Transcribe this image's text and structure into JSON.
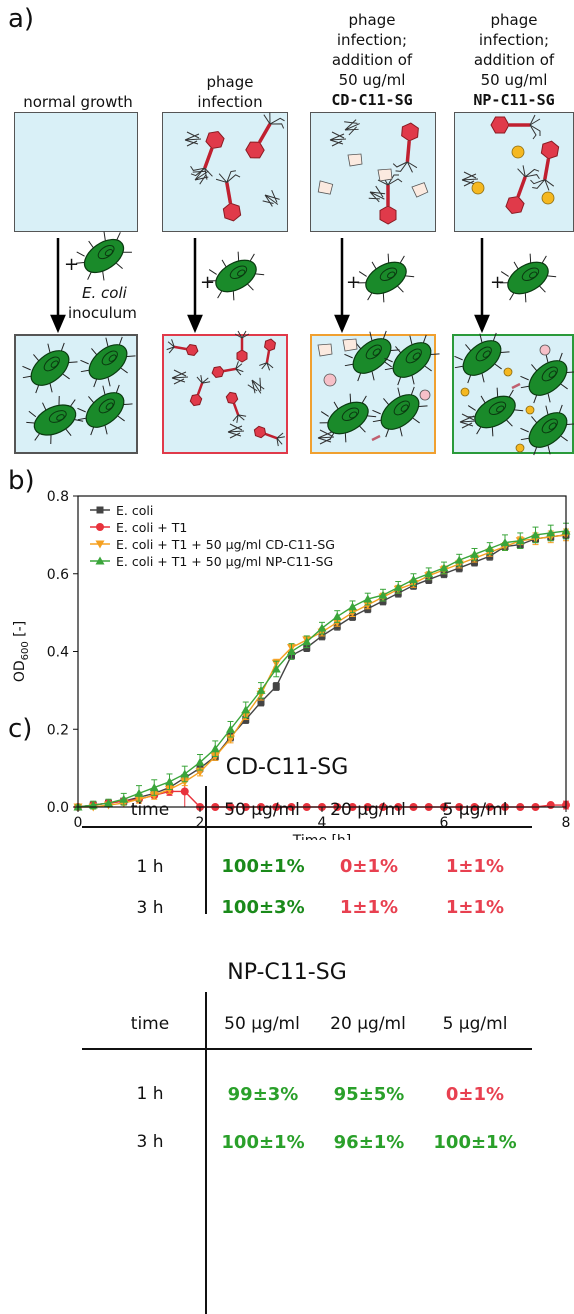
{
  "panel_a": {
    "label": "a)",
    "headers": [
      {
        "lines": [
          "normal growth"
        ],
        "bold": ""
      },
      {
        "lines": [
          "phage",
          "infection"
        ],
        "bold": ""
      },
      {
        "lines": [
          "phage",
          "infection;",
          "addition of",
          "50 ug/ml"
        ],
        "bold": "CD-C11-SG"
      },
      {
        "lines": [
          "phage",
          "infection;",
          "addition of",
          "50 ug/ml"
        ],
        "bold": "NP-C11-SG"
      }
    ],
    "plus": "+",
    "ecoli_label": "E. coli",
    "inoculum_label": "inoculum",
    "colors": {
      "box_bg": "#d9f0f7",
      "normal_border": "#555555",
      "phage_border": "#e03a4a",
      "cd_border": "#f0a030",
      "np_border": "#2a9a3a",
      "phage_red": "#e03a4a",
      "ecoli_green": "#1a8a2a",
      "np_dot": "#f5b820"
    }
  },
  "panel_b": {
    "label": "b)"
  },
  "chart_data": {
    "type": "line",
    "xlabel": "Time [h]",
    "ylabel_main": "OD",
    "ylabel_sub": "600",
    "ylabel_unit": " [-]",
    "xlim": [
      0,
      8
    ],
    "ylim": [
      0,
      0.8
    ],
    "xticks": [
      0,
      2,
      4,
      6,
      8
    ],
    "yticks": [
      0.0,
      0.2,
      0.4,
      0.6,
      0.8
    ],
    "xtick_labels": [
      "0",
      "2",
      "4",
      "6",
      "8"
    ],
    "ytick_labels": [
      "0.0",
      "0.2",
      "0.4",
      "0.6",
      "0.8"
    ],
    "legend_position": "top-left",
    "series": [
      {
        "name": "E. coli",
        "color": "#444444",
        "marker": "square",
        "x": [
          0,
          0.25,
          0.5,
          0.75,
          1,
          1.25,
          1.5,
          1.75,
          2,
          2.25,
          2.5,
          2.75,
          3,
          3.25,
          3.5,
          3.75,
          4,
          4.25,
          4.5,
          4.75,
          5,
          5.25,
          5.5,
          5.75,
          6,
          6.25,
          6.5,
          6.75,
          7,
          7.25,
          7.5,
          7.75,
          8
        ],
        "y": [
          0.0,
          0.005,
          0.01,
          0.015,
          0.025,
          0.035,
          0.05,
          0.075,
          0.1,
          0.13,
          0.18,
          0.225,
          0.27,
          0.31,
          0.39,
          0.41,
          0.44,
          0.465,
          0.49,
          0.51,
          0.53,
          0.55,
          0.57,
          0.585,
          0.6,
          0.615,
          0.63,
          0.645,
          0.67,
          0.675,
          0.69,
          0.695,
          0.7
        ],
        "err": [
          0.005,
          0.005,
          0.005,
          0.005,
          0.005,
          0.005,
          0.005,
          0.008,
          0.01,
          0.01,
          0.01,
          0.01,
          0.01,
          0.01,
          0.01,
          0.01,
          0.01,
          0.01,
          0.01,
          0.01,
          0.01,
          0.01,
          0.01,
          0.01,
          0.01,
          0.01,
          0.01,
          0.01,
          0.01,
          0.01,
          0.01,
          0.01,
          0.01
        ]
      },
      {
        "name": "E. coli + T1",
        "color": "#e8323c",
        "marker": "circle",
        "x": [
          0,
          0.25,
          0.5,
          0.75,
          1,
          1.25,
          1.5,
          1.75,
          2,
          2.25,
          2.5,
          2.75,
          3,
          3.25,
          3.5,
          3.75,
          4,
          4.25,
          4.5,
          4.75,
          5,
          5.25,
          5.5,
          5.75,
          6,
          6.25,
          6.5,
          6.75,
          7,
          7.25,
          7.5,
          7.75,
          8
        ],
        "y": [
          0.0,
          0.005,
          0.01,
          0.015,
          0.02,
          0.03,
          0.04,
          0.04,
          0.0,
          0.0,
          0.0,
          0.0,
          0.0,
          0.0,
          0.0,
          0.0,
          0.0,
          0.0,
          0.0,
          0.0,
          0.0,
          0.0,
          0.0,
          0.0,
          0.0,
          0.0,
          0.0,
          0.0,
          0.0,
          0.0,
          0.0,
          0.005,
          0.005
        ],
        "err": [
          0.005,
          0.005,
          0.005,
          0.005,
          0.005,
          0.005,
          0.01,
          0.04,
          0.005,
          0.003,
          0.003,
          0.003,
          0.003,
          0.003,
          0.003,
          0.003,
          0.003,
          0.003,
          0.003,
          0.003,
          0.003,
          0.003,
          0.003,
          0.003,
          0.003,
          0.003,
          0.003,
          0.003,
          0.003,
          0.003,
          0.003,
          0.005,
          0.01
        ]
      },
      {
        "name": "E. coli + T1 + 50 µg/ml CD-C11-SG",
        "color": "#f5a020",
        "marker": "triangle-down",
        "x": [
          0,
          0.25,
          0.5,
          0.75,
          1,
          1.25,
          1.5,
          1.75,
          2,
          2.25,
          2.5,
          2.75,
          3,
          3.25,
          3.5,
          3.75,
          4,
          4.25,
          4.5,
          4.75,
          5,
          5.25,
          5.5,
          5.75,
          6,
          6.25,
          6.5,
          6.75,
          7,
          7.25,
          7.5,
          7.75,
          8
        ],
        "y": [
          0.0,
          0.0,
          0.005,
          0.01,
          0.02,
          0.03,
          0.045,
          0.065,
          0.09,
          0.13,
          0.175,
          0.235,
          0.29,
          0.37,
          0.41,
          0.43,
          0.45,
          0.475,
          0.5,
          0.52,
          0.54,
          0.56,
          0.575,
          0.595,
          0.61,
          0.625,
          0.64,
          0.655,
          0.67,
          0.685,
          0.69,
          0.695,
          0.7
        ],
        "err": [
          0.005,
          0.005,
          0.005,
          0.005,
          0.01,
          0.01,
          0.01,
          0.01,
          0.01,
          0.01,
          0.01,
          0.01,
          0.015,
          0.01,
          0.01,
          0.01,
          0.01,
          0.01,
          0.01,
          0.01,
          0.01,
          0.01,
          0.01,
          0.01,
          0.01,
          0.01,
          0.01,
          0.01,
          0.01,
          0.01,
          0.015,
          0.015,
          0.015
        ]
      },
      {
        "name": "E. coli + T1 + 50 µg/ml NP-C11-SG",
        "color": "#3aa53a",
        "marker": "triangle-up",
        "x": [
          0,
          0.25,
          0.5,
          0.75,
          1,
          1.25,
          1.5,
          1.75,
          2,
          2.25,
          2.5,
          2.75,
          3,
          3.25,
          3.5,
          3.75,
          4,
          4.25,
          4.5,
          4.75,
          5,
          5.25,
          5.5,
          5.75,
          6,
          6.25,
          6.5,
          6.75,
          7,
          7.25,
          7.5,
          7.75,
          8
        ],
        "y": [
          0.0,
          0.005,
          0.01,
          0.02,
          0.035,
          0.05,
          0.065,
          0.085,
          0.115,
          0.15,
          0.2,
          0.25,
          0.3,
          0.355,
          0.4,
          0.425,
          0.46,
          0.49,
          0.515,
          0.535,
          0.545,
          0.565,
          0.585,
          0.6,
          0.615,
          0.635,
          0.65,
          0.665,
          0.68,
          0.685,
          0.7,
          0.705,
          0.71
        ],
        "err": [
          0.005,
          0.01,
          0.01,
          0.015,
          0.02,
          0.02,
          0.02,
          0.02,
          0.02,
          0.02,
          0.02,
          0.02,
          0.02,
          0.02,
          0.02,
          0.015,
          0.015,
          0.015,
          0.015,
          0.015,
          0.015,
          0.015,
          0.015,
          0.015,
          0.015,
          0.015,
          0.015,
          0.015,
          0.02,
          0.02,
          0.02,
          0.02,
          0.02
        ]
      }
    ]
  },
  "panel_c": {
    "label": "c)",
    "tables": [
      {
        "title": "CD-C11-SG",
        "columns": [
          "time",
          "50 µg/ml",
          "20 µg/ml",
          "5 µg/ml"
        ],
        "rows": [
          {
            "time": "1 h",
            "values": [
              "100±1%",
              "0±1%",
              "1±1%"
            ],
            "colors": [
              "#1a8a1a",
              "#e84050",
              "#e84050"
            ]
          },
          {
            "time": "3 h",
            "values": [
              "100±3%",
              "1±1%",
              "1±1%"
            ],
            "colors": [
              "#1a8a1a",
              "#e84050",
              "#e84050"
            ]
          }
        ]
      },
      {
        "title": "NP-C11-SG",
        "columns": [
          "time",
          "50 µg/ml",
          "20 µg/ml",
          "5 µg/ml"
        ],
        "rows": [
          {
            "time": "1 h",
            "values": [
              "99±3%",
              "95±5%",
              "0±1%"
            ],
            "colors": [
              "#2aa02a",
              "#2aa02a",
              "#e84050"
            ]
          },
          {
            "time": "3 h",
            "values": [
              "100±1%",
              "96±1%",
              "100±1%"
            ],
            "colors": [
              "#2aa02a",
              "#2aa02a",
              "#2aa02a"
            ]
          }
        ]
      }
    ]
  }
}
